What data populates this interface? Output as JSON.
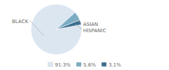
{
  "chart_data": {
    "type": "pie",
    "categories": [
      "BLACK",
      "ASIAN",
      "HISPANIC"
    ],
    "values": [
      91.3,
      5.6,
      3.1
    ],
    "value_labels": [
      "91.3%",
      "5.6%",
      "3.1%"
    ],
    "colors": [
      "#dce6f1",
      "#7bacc4",
      "#3a6e8f"
    ],
    "legend": "bottom"
  }
}
